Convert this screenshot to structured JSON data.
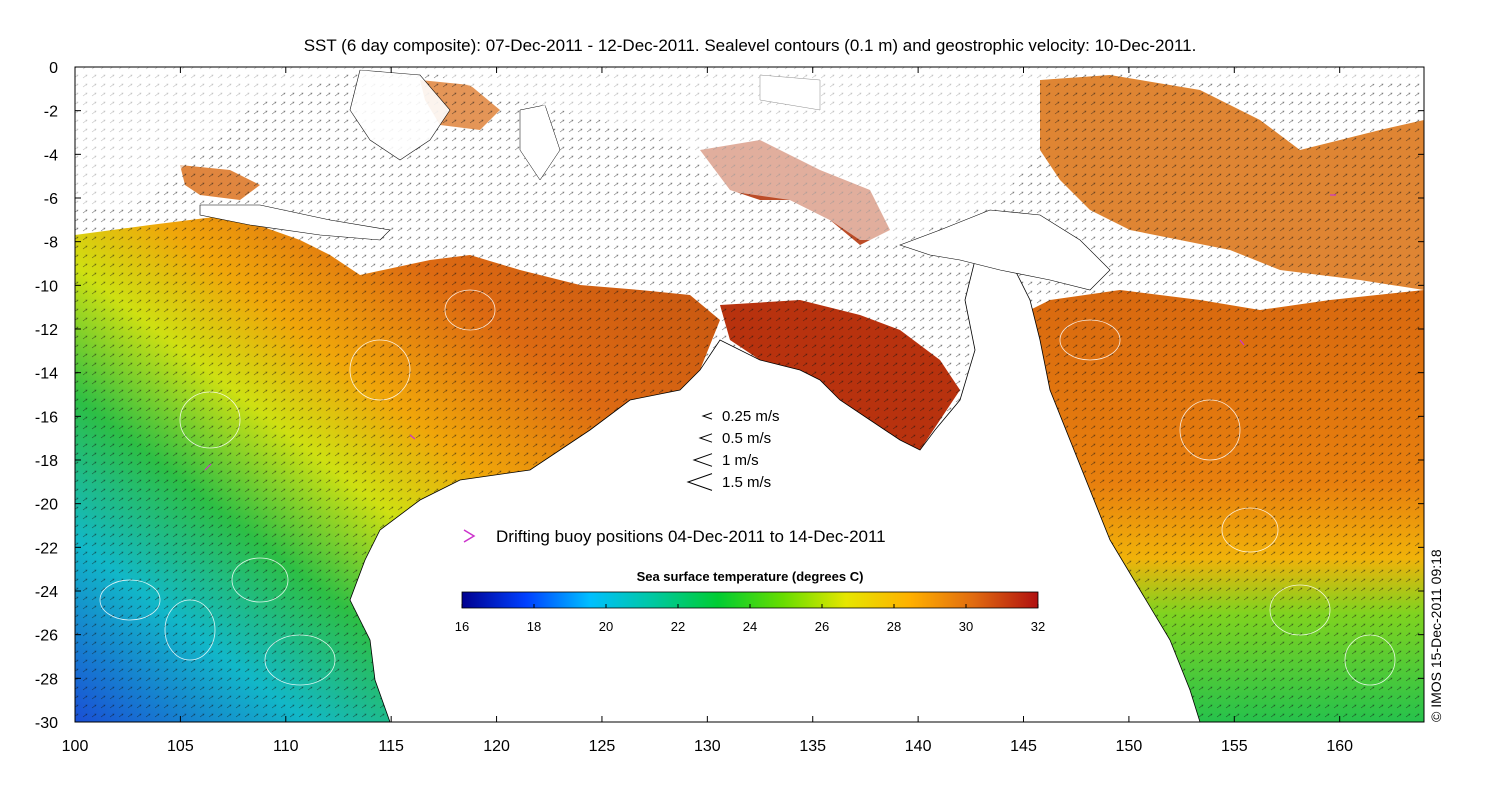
{
  "title": "SST (6 day composite): 07-Dec-2011 - 12-Dec-2011. Sealevel contours (0.1 m) and geostrophic velocity: 10-Dec-2011.",
  "axes": {
    "x_ticks": [
      "100",
      "105",
      "110",
      "115",
      "120",
      "125",
      "130",
      "135",
      "140",
      "145",
      "150",
      "155",
      "160"
    ],
    "y_ticks": [
      "0",
      "-2",
      "-4",
      "-6",
      "-8",
      "-10",
      "-12",
      "-14",
      "-16",
      "-18",
      "-20",
      "-22",
      "-24",
      "-26",
      "-28",
      "-30"
    ],
    "x_range": [
      100,
      164
    ],
    "y_range": [
      -30,
      0
    ]
  },
  "velocity_legend": [
    {
      "label": "0.25 m/s",
      "speed": 0.25
    },
    {
      "label": "0.5 m/s",
      "speed": 0.5
    },
    {
      "label": "1 m/s",
      "speed": 1
    },
    {
      "label": "1.5 m/s",
      "speed": 1.5
    }
  ],
  "buoy_legend": {
    "label": "Drifting buoy positions 04-Dec-2011 to 14-Dec-2011",
    "color": "#cc33cc"
  },
  "colorbar": {
    "title": "Sea surface temperature (degrees C)",
    "ticks": [
      "16",
      "18",
      "20",
      "22",
      "24",
      "26",
      "28",
      "30",
      "32"
    ],
    "range": [
      16,
      32
    ],
    "colors": [
      "#00008f",
      "#0040ff",
      "#00bfff",
      "#00c8a0",
      "#00cc33",
      "#66dd00",
      "#e6e600",
      "#ffb000",
      "#e06a10",
      "#b01010"
    ]
  },
  "credit": "© IMOS 15-Dec-2011 09:18"
}
